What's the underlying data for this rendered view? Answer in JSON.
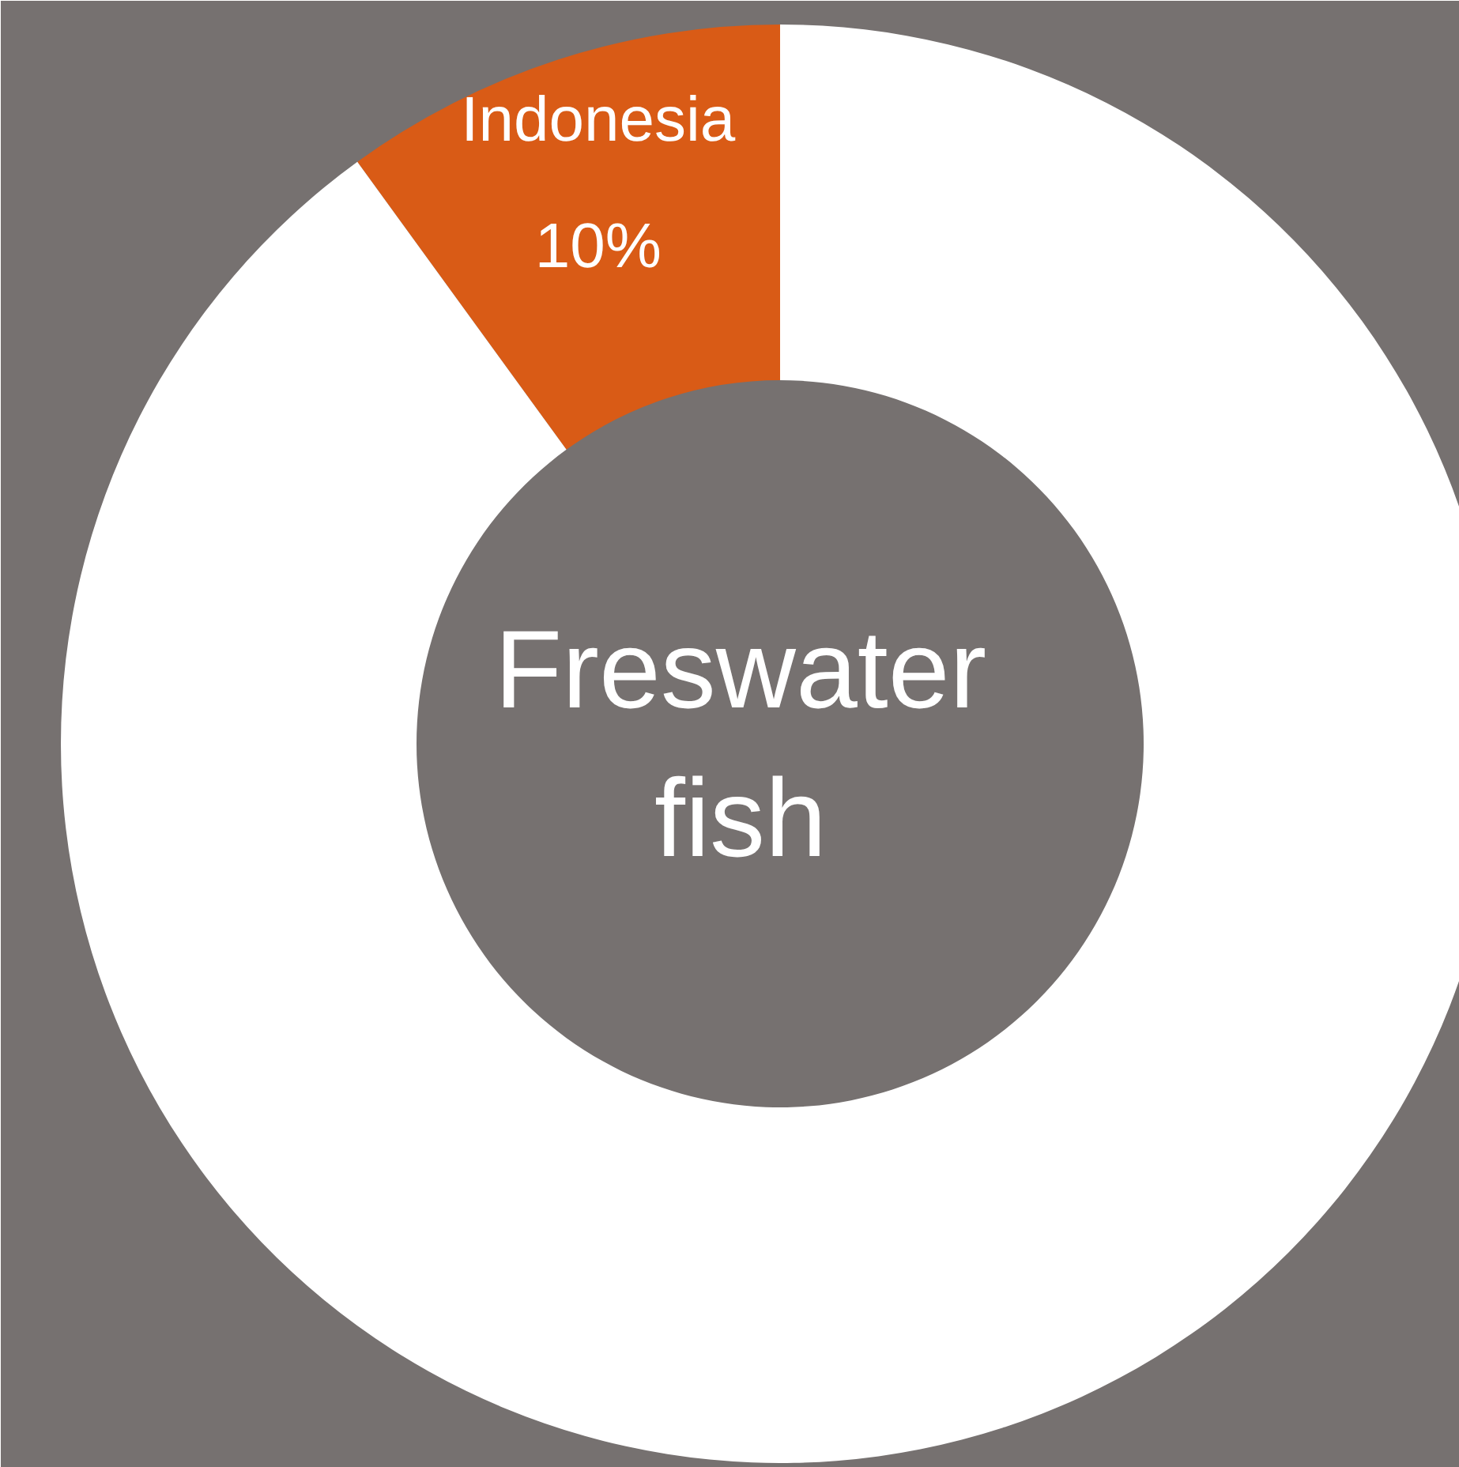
{
  "chart_data": {
    "type": "donut",
    "title": "Freswater\nfish",
    "categories": [
      "Indonesia",
      null
    ],
    "values": [
      10,
      90
    ],
    "colors": [
      "#d95b16",
      "#ffffff"
    ],
    "value_labels": [
      "10%",
      null
    ],
    "legend": false
  }
}
